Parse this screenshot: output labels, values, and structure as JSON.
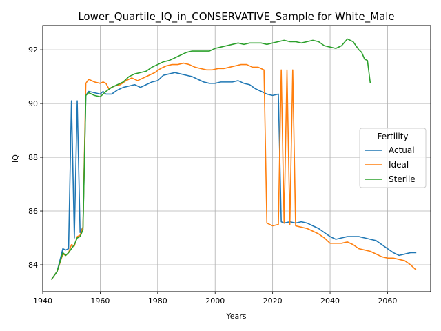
{
  "chart_data": {
    "type": "line",
    "title": "Lower_Quartile_IQ_in_CONSERVATIVE_Sample for White_Male",
    "xlabel": "Years",
    "ylabel": "IQ",
    "xlim": [
      1940,
      2075
    ],
    "ylim": [
      83,
      92.9
    ],
    "xticks": [
      1940,
      1960,
      1980,
      2000,
      2020,
      2040,
      2060
    ],
    "yticks": [
      84,
      86,
      88,
      90,
      92
    ],
    "grid": true,
    "legend": {
      "title": "Fertility",
      "position": "center-right"
    },
    "series": [
      {
        "name": "Actual",
        "color": "#1f77b4",
        "points": [
          [
            1943,
            83.45
          ],
          [
            1945,
            83.75
          ],
          [
            1947,
            84.6
          ],
          [
            1948,
            84.55
          ],
          [
            1949,
            84.6
          ],
          [
            1950,
            90.1
          ],
          [
            1951,
            85.0
          ],
          [
            1952,
            90.1
          ],
          [
            1953,
            85.2
          ],
          [
            1954,
            85.4
          ],
          [
            1955,
            90.3
          ],
          [
            1956,
            90.45
          ],
          [
            1958,
            90.4
          ],
          [
            1960,
            90.35
          ],
          [
            1961,
            90.45
          ],
          [
            1962,
            90.35
          ],
          [
            1964,
            90.35
          ],
          [
            1966,
            90.5
          ],
          [
            1968,
            90.6
          ],
          [
            1970,
            90.65
          ],
          [
            1972,
            90.7
          ],
          [
            1974,
            90.6
          ],
          [
            1976,
            90.7
          ],
          [
            1978,
            90.8
          ],
          [
            1980,
            90.85
          ],
          [
            1982,
            91.05
          ],
          [
            1984,
            91.1
          ],
          [
            1986,
            91.15
          ],
          [
            1988,
            91.1
          ],
          [
            1990,
            91.05
          ],
          [
            1992,
            91.0
          ],
          [
            1994,
            90.9
          ],
          [
            1996,
            90.8
          ],
          [
            1998,
            90.75
          ],
          [
            2000,
            90.75
          ],
          [
            2002,
            90.8
          ],
          [
            2004,
            90.8
          ],
          [
            2006,
            90.8
          ],
          [
            2008,
            90.85
          ],
          [
            2010,
            90.75
          ],
          [
            2012,
            90.7
          ],
          [
            2014,
            90.55
          ],
          [
            2016,
            90.45
          ],
          [
            2018,
            90.35
          ],
          [
            2020,
            90.3
          ],
          [
            2022,
            90.35
          ],
          [
            2023,
            85.6
          ],
          [
            2024,
            85.55
          ],
          [
            2026,
            85.6
          ],
          [
            2028,
            85.55
          ],
          [
            2030,
            85.6
          ],
          [
            2032,
            85.55
          ],
          [
            2034,
            85.45
          ],
          [
            2036,
            85.35
          ],
          [
            2038,
            85.2
          ],
          [
            2040,
            85.05
          ],
          [
            2042,
            84.95
          ],
          [
            2044,
            85.0
          ],
          [
            2046,
            85.05
          ],
          [
            2048,
            85.05
          ],
          [
            2050,
            85.05
          ],
          [
            2052,
            85.0
          ],
          [
            2054,
            84.95
          ],
          [
            2056,
            84.9
          ],
          [
            2058,
            84.75
          ],
          [
            2060,
            84.6
          ],
          [
            2062,
            84.45
          ],
          [
            2064,
            84.35
          ],
          [
            2066,
            84.4
          ],
          [
            2068,
            84.45
          ],
          [
            2070,
            84.45
          ]
        ]
      },
      {
        "name": "Ideal",
        "color": "#ff7f0e",
        "points": [
          [
            1943,
            83.45
          ],
          [
            1945,
            83.75
          ],
          [
            1947,
            84.4
          ],
          [
            1948,
            84.35
          ],
          [
            1949,
            84.45
          ],
          [
            1950,
            84.75
          ],
          [
            1951,
            84.7
          ],
          [
            1952,
            85.05
          ],
          [
            1953,
            85.1
          ],
          [
            1954,
            85.4
          ],
          [
            1955,
            90.75
          ],
          [
            1956,
            90.9
          ],
          [
            1958,
            90.8
          ],
          [
            1960,
            90.75
          ],
          [
            1961,
            90.8
          ],
          [
            1962,
            90.75
          ],
          [
            1963,
            90.55
          ],
          [
            1965,
            90.65
          ],
          [
            1967,
            90.7
          ],
          [
            1969,
            90.85
          ],
          [
            1971,
            90.95
          ],
          [
            1973,
            90.85
          ],
          [
            1975,
            90.95
          ],
          [
            1977,
            91.05
          ],
          [
            1979,
            91.15
          ],
          [
            1981,
            91.3
          ],
          [
            1983,
            91.4
          ],
          [
            1985,
            91.45
          ],
          [
            1987,
            91.45
          ],
          [
            1989,
            91.5
          ],
          [
            1991,
            91.45
          ],
          [
            1993,
            91.35
          ],
          [
            1995,
            91.3
          ],
          [
            1997,
            91.25
          ],
          [
            1999,
            91.25
          ],
          [
            2001,
            91.3
          ],
          [
            2003,
            91.3
          ],
          [
            2005,
            91.35
          ],
          [
            2007,
            91.4
          ],
          [
            2009,
            91.45
          ],
          [
            2011,
            91.45
          ],
          [
            2013,
            91.35
          ],
          [
            2015,
            91.35
          ],
          [
            2017,
            91.25
          ],
          [
            2018,
            85.55
          ],
          [
            2020,
            85.45
          ],
          [
            2022,
            85.5
          ],
          [
            2023,
            91.25
          ],
          [
            2024,
            85.55
          ],
          [
            2025,
            91.25
          ],
          [
            2026,
            85.5
          ],
          [
            2027,
            91.25
          ],
          [
            2028,
            85.45
          ],
          [
            2030,
            85.4
          ],
          [
            2032,
            85.35
          ],
          [
            2034,
            85.25
          ],
          [
            2036,
            85.15
          ],
          [
            2038,
            85.0
          ],
          [
            2040,
            84.8
          ],
          [
            2042,
            84.8
          ],
          [
            2044,
            84.8
          ],
          [
            2046,
            84.85
          ],
          [
            2048,
            84.75
          ],
          [
            2050,
            84.6
          ],
          [
            2052,
            84.55
          ],
          [
            2054,
            84.5
          ],
          [
            2056,
            84.4
          ],
          [
            2058,
            84.3
          ],
          [
            2060,
            84.25
          ],
          [
            2062,
            84.25
          ],
          [
            2064,
            84.2
          ],
          [
            2066,
            84.15
          ],
          [
            2068,
            84.0
          ],
          [
            2070,
            83.8
          ]
        ]
      },
      {
        "name": "Sterile",
        "color": "#2ca02c",
        "points": [
          [
            1943,
            83.45
          ],
          [
            1945,
            83.75
          ],
          [
            1947,
            84.45
          ],
          [
            1948,
            84.35
          ],
          [
            1949,
            84.45
          ],
          [
            1950,
            84.6
          ],
          [
            1951,
            84.75
          ],
          [
            1952,
            85.0
          ],
          [
            1953,
            85.05
          ],
          [
            1954,
            85.3
          ],
          [
            1955,
            90.3
          ],
          [
            1956,
            90.4
          ],
          [
            1958,
            90.3
          ],
          [
            1960,
            90.25
          ],
          [
            1961,
            90.35
          ],
          [
            1962,
            90.45
          ],
          [
            1964,
            90.6
          ],
          [
            1966,
            90.7
          ],
          [
            1968,
            90.8
          ],
          [
            1970,
            91.0
          ],
          [
            1972,
            91.1
          ],
          [
            1974,
            91.15
          ],
          [
            1976,
            91.2
          ],
          [
            1978,
            91.35
          ],
          [
            1980,
            91.45
          ],
          [
            1982,
            91.55
          ],
          [
            1984,
            91.6
          ],
          [
            1986,
            91.7
          ],
          [
            1988,
            91.8
          ],
          [
            1990,
            91.9
          ],
          [
            1992,
            91.95
          ],
          [
            1994,
            91.95
          ],
          [
            1996,
            91.95
          ],
          [
            1998,
            91.95
          ],
          [
            2000,
            92.05
          ],
          [
            2002,
            92.1
          ],
          [
            2004,
            92.15
          ],
          [
            2006,
            92.2
          ],
          [
            2008,
            92.25
          ],
          [
            2010,
            92.2
          ],
          [
            2012,
            92.25
          ],
          [
            2014,
            92.25
          ],
          [
            2016,
            92.25
          ],
          [
            2018,
            92.2
          ],
          [
            2020,
            92.25
          ],
          [
            2022,
            92.3
          ],
          [
            2024,
            92.35
          ],
          [
            2026,
            92.3
          ],
          [
            2028,
            92.3
          ],
          [
            2030,
            92.25
          ],
          [
            2032,
            92.3
          ],
          [
            2034,
            92.35
          ],
          [
            2036,
            92.3
          ],
          [
            2038,
            92.15
          ],
          [
            2040,
            92.1
          ],
          [
            2042,
            92.05
          ],
          [
            2044,
            92.15
          ],
          [
            2046,
            92.4
          ],
          [
            2048,
            92.3
          ],
          [
            2050,
            92.0
          ],
          [
            2051,
            91.9
          ],
          [
            2052,
            91.65
          ],
          [
            2053,
            91.6
          ],
          [
            2054,
            90.75
          ]
        ]
      }
    ]
  }
}
